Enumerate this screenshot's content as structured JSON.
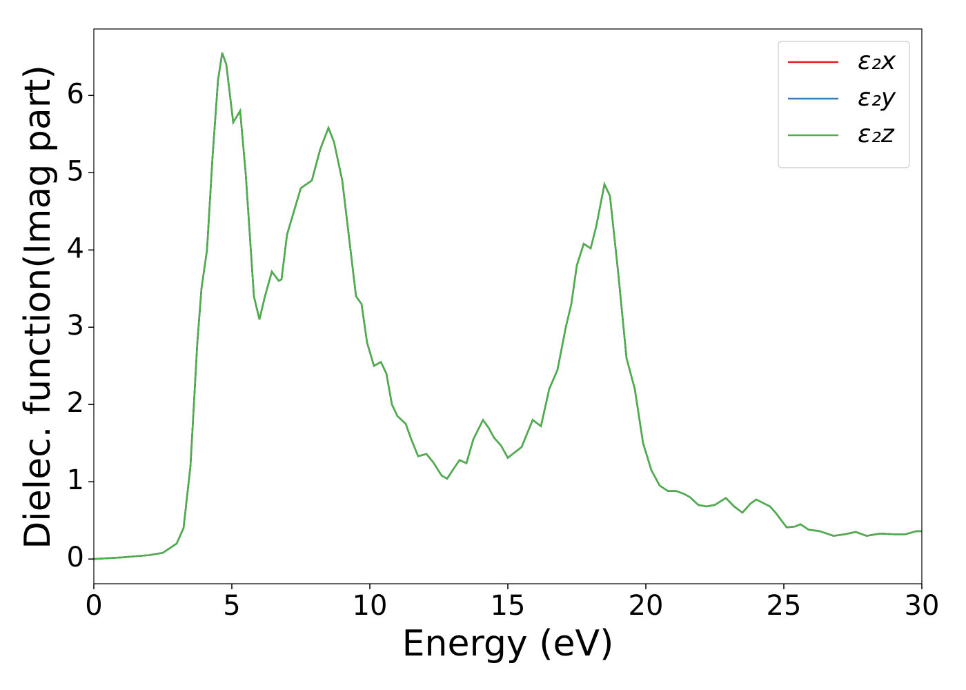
{
  "chart_data": {
    "type": "line",
    "xlabel": "Energy (eV)",
    "ylabel": "Dielec. function(Imag part)",
    "xlim": [
      0,
      30
    ],
    "ylim": [
      -0.32,
      6.86
    ],
    "xticks": [
      0,
      5,
      10,
      15,
      20,
      25,
      30
    ],
    "yticks": [
      0,
      1,
      2,
      3,
      4,
      5,
      6
    ],
    "legend": "upper right",
    "x": [
      0,
      1,
      2,
      2.5,
      3,
      3.25,
      3.5,
      3.75,
      3.9,
      4.1,
      4.3,
      4.5,
      4.65,
      4.8,
      5.05,
      5.3,
      5.5,
      5.8,
      6.0,
      6.2,
      6.45,
      6.7,
      6.8,
      7.0,
      7.25,
      7.5,
      7.9,
      8.2,
      8.5,
      8.7,
      9.0,
      9.3,
      9.5,
      9.7,
      9.9,
      10.15,
      10.4,
      10.6,
      10.8,
      11.0,
      11.3,
      11.5,
      11.75,
      12.05,
      12.3,
      12.6,
      12.8,
      13.0,
      13.25,
      13.5,
      13.75,
      14.1,
      14.3,
      14.5,
      14.75,
      15.0,
      15.25,
      15.5,
      15.9,
      16.2,
      16.5,
      16.8,
      17.1,
      17.3,
      17.5,
      17.75,
      18.0,
      18.2,
      18.5,
      18.7,
      19.0,
      19.3,
      19.6,
      19.9,
      20.2,
      20.5,
      20.8,
      21.1,
      21.4,
      21.6,
      21.9,
      22.2,
      22.5,
      22.9,
      23.2,
      23.5,
      23.8,
      24.0,
      24.5,
      24.7,
      25.1,
      25.4,
      25.6,
      25.9,
      26.3,
      26.8,
      27.2,
      27.6,
      28.0,
      28.5,
      29.0,
      29.4,
      29.8,
      30
    ],
    "series": [
      {
        "name": "ε₂x",
        "color": "#e41a1c",
        "values": [
          0.0,
          0.02,
          0.05,
          0.08,
          0.2,
          0.4,
          1.2,
          2.8,
          3.5,
          4.0,
          5.2,
          6.2,
          6.55,
          6.4,
          5.65,
          5.8,
          5.0,
          3.4,
          3.1,
          3.4,
          3.72,
          3.6,
          3.62,
          4.2,
          4.5,
          4.8,
          4.9,
          5.3,
          5.58,
          5.4,
          4.9,
          4.0,
          3.4,
          3.3,
          2.8,
          2.5,
          2.55,
          2.4,
          2.0,
          1.85,
          1.75,
          1.55,
          1.33,
          1.36,
          1.25,
          1.08,
          1.04,
          1.15,
          1.28,
          1.24,
          1.55,
          1.8,
          1.7,
          1.57,
          1.47,
          1.31,
          1.38,
          1.45,
          1.8,
          1.72,
          2.2,
          2.45,
          3.0,
          3.3,
          3.8,
          4.08,
          4.02,
          4.3,
          4.85,
          4.7,
          3.7,
          2.6,
          2.2,
          1.5,
          1.15,
          0.95,
          0.88,
          0.88,
          0.84,
          0.8,
          0.7,
          0.68,
          0.7,
          0.79,
          0.68,
          0.6,
          0.72,
          0.77,
          0.68,
          0.6,
          0.41,
          0.42,
          0.45,
          0.38,
          0.36,
          0.3,
          0.32,
          0.35,
          0.3,
          0.33,
          0.32,
          0.32,
          0.36,
          0.36
        ]
      },
      {
        "name": "ε₂y",
        "color": "#377eb8",
        "values": [
          0.0,
          0.02,
          0.05,
          0.08,
          0.2,
          0.4,
          1.2,
          2.8,
          3.5,
          4.0,
          5.2,
          6.2,
          6.55,
          6.4,
          5.65,
          5.8,
          5.0,
          3.4,
          3.1,
          3.4,
          3.72,
          3.6,
          3.62,
          4.2,
          4.5,
          4.8,
          4.9,
          5.3,
          5.58,
          5.4,
          4.9,
          4.0,
          3.4,
          3.3,
          2.8,
          2.5,
          2.55,
          2.4,
          2.0,
          1.85,
          1.75,
          1.55,
          1.33,
          1.36,
          1.25,
          1.08,
          1.04,
          1.15,
          1.28,
          1.24,
          1.55,
          1.8,
          1.7,
          1.57,
          1.47,
          1.31,
          1.38,
          1.45,
          1.8,
          1.72,
          2.2,
          2.45,
          3.0,
          3.3,
          3.8,
          4.08,
          4.02,
          4.3,
          4.85,
          4.7,
          3.7,
          2.6,
          2.2,
          1.5,
          1.15,
          0.95,
          0.88,
          0.88,
          0.84,
          0.8,
          0.7,
          0.68,
          0.7,
          0.79,
          0.68,
          0.6,
          0.72,
          0.77,
          0.68,
          0.6,
          0.41,
          0.42,
          0.45,
          0.38,
          0.36,
          0.3,
          0.32,
          0.35,
          0.3,
          0.33,
          0.32,
          0.32,
          0.36,
          0.36
        ]
      },
      {
        "name": "ε₂z",
        "color": "#4daf4a",
        "values": [
          0.0,
          0.02,
          0.05,
          0.08,
          0.2,
          0.4,
          1.2,
          2.8,
          3.5,
          4.0,
          5.2,
          6.2,
          6.55,
          6.4,
          5.65,
          5.8,
          5.0,
          3.4,
          3.1,
          3.4,
          3.72,
          3.6,
          3.62,
          4.2,
          4.5,
          4.8,
          4.9,
          5.3,
          5.58,
          5.4,
          4.9,
          4.0,
          3.4,
          3.3,
          2.8,
          2.5,
          2.55,
          2.4,
          2.0,
          1.85,
          1.75,
          1.55,
          1.33,
          1.36,
          1.25,
          1.08,
          1.04,
          1.15,
          1.28,
          1.24,
          1.55,
          1.8,
          1.7,
          1.57,
          1.47,
          1.31,
          1.38,
          1.45,
          1.8,
          1.72,
          2.2,
          2.45,
          3.0,
          3.3,
          3.8,
          4.08,
          4.02,
          4.3,
          4.85,
          4.7,
          3.7,
          2.6,
          2.2,
          1.5,
          1.15,
          0.95,
          0.88,
          0.88,
          0.84,
          0.8,
          0.7,
          0.68,
          0.7,
          0.79,
          0.68,
          0.6,
          0.72,
          0.77,
          0.68,
          0.6,
          0.41,
          0.42,
          0.45,
          0.38,
          0.36,
          0.3,
          0.32,
          0.35,
          0.3,
          0.33,
          0.32,
          0.32,
          0.36,
          0.36
        ]
      }
    ]
  }
}
